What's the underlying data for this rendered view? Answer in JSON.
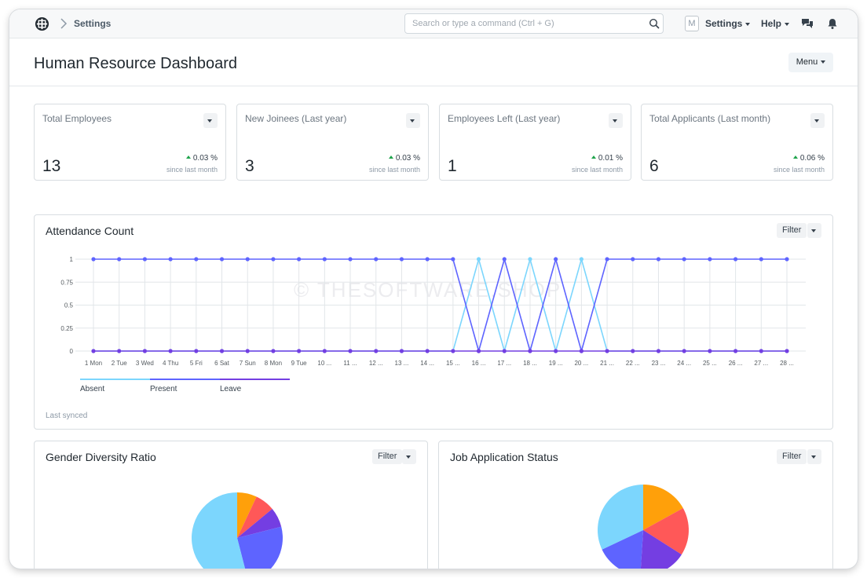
{
  "navbar": {
    "breadcrumb": "Settings",
    "search_placeholder": "Search or type a command (Ctrl + G)",
    "avatar_initial": "M",
    "settings_label": "Settings",
    "help_label": "Help"
  },
  "page": {
    "title": "Human Resource Dashboard",
    "menu_label": "Menu"
  },
  "cards": [
    {
      "label": "Total Employees",
      "value": "13",
      "trend": "0.03 %",
      "since": "since last month"
    },
    {
      "label": "New Joinees (Last year)",
      "value": "3",
      "trend": "0.03 %",
      "since": "since last month"
    },
    {
      "label": "Employees Left (Last year)",
      "value": "1",
      "trend": "0.01 %",
      "since": "since last month"
    },
    {
      "label": "Total Applicants (Last month)",
      "value": "6",
      "trend": "0.06 %",
      "since": "since last month"
    }
  ],
  "attendance": {
    "title": "Attendance Count",
    "filter_label": "Filter",
    "last_synced": "Last synced",
    "watermark": "© THESOFTWARE.SHOP"
  },
  "gender": {
    "title": "Gender Diversity Ratio",
    "filter_label": "Filter"
  },
  "job_status": {
    "title": "Job Application Status",
    "filter_label": "Filter"
  },
  "colors": {
    "absent": "#7cd6fd",
    "present": "#5e64ff",
    "leave": "#743ee2",
    "orange": "#ffa00a",
    "red": "#ff5858",
    "trend_up": "#1ea34b"
  },
  "chart_data": [
    {
      "type": "line",
      "title": "Attendance Count",
      "categories": [
        "1 Mon",
        "2 Tue",
        "3 Wed",
        "4 Thu",
        "5 Fri",
        "6 Sat",
        "7 Sun",
        "8 Mon",
        "9 Tue",
        "10 ...",
        "11 ...",
        "12 ...",
        "13 ...",
        "14 ...",
        "15 ...",
        "16 ...",
        "17 ...",
        "18 ...",
        "19 ...",
        "20 ...",
        "21 ...",
        "22 ...",
        "23 ...",
        "24 ...",
        "25 ...",
        "26 ...",
        "27 ...",
        "28 ..."
      ],
      "y_ticks": [
        "1",
        "0.75",
        "0.5",
        "0.25",
        "0"
      ],
      "ylim": [
        0,
        1
      ],
      "legend_position": "bottom-left",
      "grid": true,
      "series": [
        {
          "name": "Absent",
          "values": [
            0,
            0,
            0,
            0,
            0,
            0,
            0,
            0,
            0,
            0,
            0,
            0,
            0,
            0,
            0,
            1,
            0,
            1,
            0,
            1,
            0,
            0,
            0,
            0,
            0,
            0,
            0,
            0
          ]
        },
        {
          "name": "Present",
          "values": [
            1,
            1,
            1,
            1,
            1,
            1,
            1,
            1,
            1,
            1,
            1,
            1,
            1,
            1,
            1,
            0,
            1,
            0,
            1,
            0,
            1,
            1,
            1,
            1,
            1,
            1,
            1,
            1
          ]
        },
        {
          "name": "Leave",
          "values": [
            0,
            0,
            0,
            0,
            0,
            0,
            0,
            0,
            0,
            0,
            0,
            0,
            0,
            0,
            0,
            0,
            0,
            0,
            0,
            0,
            0,
            0,
            0,
            0,
            0,
            0,
            0,
            0
          ]
        }
      ]
    },
    {
      "type": "pie",
      "title": "Gender Diversity Ratio",
      "values": [
        7,
        7,
        7,
        25,
        54
      ],
      "colors": [
        "#ffa00a",
        "#ff5858",
        "#743ee2",
        "#5e64ff",
        "#7cd6fd"
      ]
    },
    {
      "type": "pie",
      "title": "Job Application Status",
      "values": [
        17,
        17,
        17,
        17,
        32
      ],
      "colors": [
        "#ffa00a",
        "#ff5858",
        "#743ee2",
        "#5e64ff",
        "#7cd6fd"
      ]
    }
  ]
}
